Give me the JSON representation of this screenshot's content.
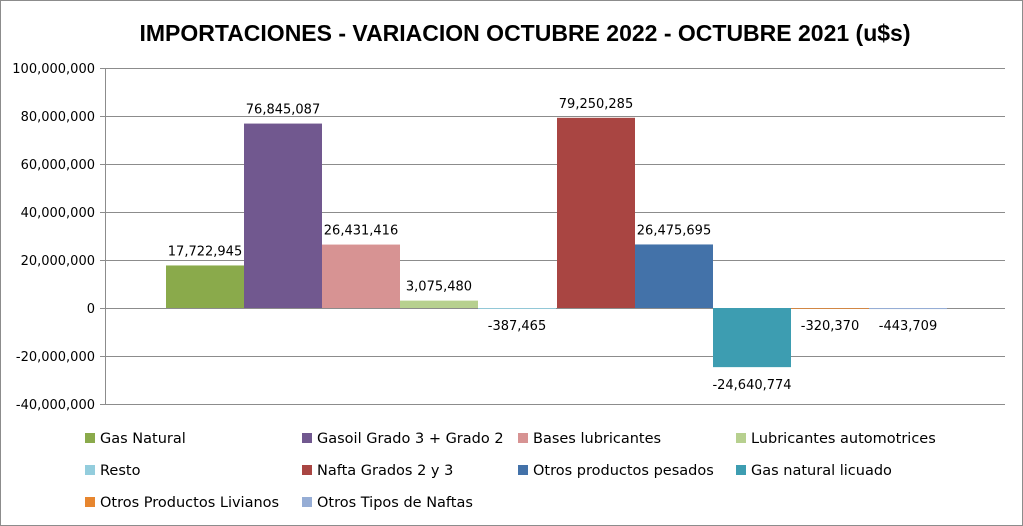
{
  "chart_data": {
    "type": "bar",
    "title": "IMPORTACIONES - VARIACION OCTUBRE 2022 - OCTUBRE 2021 (u$s)",
    "xlabel": "",
    "ylabel": "",
    "ylim": [
      -40000000,
      100000000
    ],
    "yticks": [
      100000000,
      80000000,
      60000000,
      40000000,
      20000000,
      0,
      -20000000,
      -40000000
    ],
    "ytick_labels": [
      "100,000,000",
      "80,000,000",
      "60,000,000",
      "40,000,000",
      "20,000,000",
      "0",
      "-20,000,000",
      "-40,000,000"
    ],
    "grid": true,
    "legend_position": "bottom",
    "series": [
      {
        "name": "Gas Natural",
        "value": 17722945,
        "label": "17,722,945",
        "color": "#8aaa4b"
      },
      {
        "name": "Gasoil Grado 3 + Grado 2",
        "value": 76845087,
        "label": "76,845,087",
        "color": "#71588f"
      },
      {
        "name": "Bases lubricantes",
        "value": 26431416,
        "label": "26,431,416",
        "color": "#d79393"
      },
      {
        "name": "Lubricantes automotrices",
        "value": 3075480,
        "label": "3,075,480",
        "color": "#b7d08f"
      },
      {
        "name": "Resto",
        "value": -387465,
        "label": "-387,465",
        "color": "#93cddd"
      },
      {
        "name": "Nafta Grados 2 y 3",
        "value": 79250285,
        "label": "79,250,285",
        "color": "#a94542"
      },
      {
        "name": "Otros productos pesados",
        "value": 26475695,
        "label": "26,475,695",
        "color": "#4372a9"
      },
      {
        "name": "Gas natural licuado",
        "value": -24640774,
        "label": "-24,640,774",
        "color": "#3d9db1"
      },
      {
        "name": "Otros Productos Livianos",
        "value": -320370,
        "label": "-320,370",
        "color": "#e7862f"
      },
      {
        "name": "Otros Tipos de Naftas",
        "value": -443709,
        "label": "-443,709",
        "color": "#96add5"
      }
    ]
  }
}
